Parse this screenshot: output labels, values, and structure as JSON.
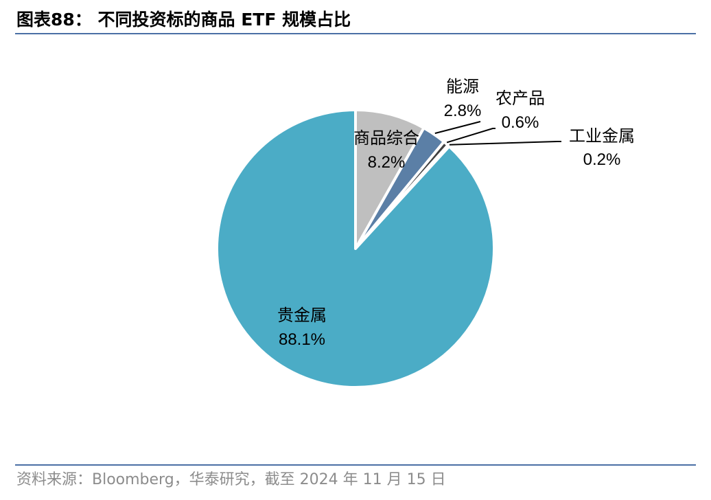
{
  "header": {
    "title": "图表88： 不同投资标的商品 ETF 规模占比"
  },
  "footer": {
    "source": "资料来源：Bloomberg，华泰研究，截至 2024 年 11 月 15 日"
  },
  "chart_data": {
    "type": "pie",
    "title": "",
    "start_angle_deg": 0,
    "direction": "clockwise",
    "slices": [
      {
        "name": "商品综合",
        "value": 8.2,
        "value_label": "8.2%",
        "color": "#bfbfbf"
      },
      {
        "name": "能源",
        "value": 2.8,
        "value_label": "2.8%",
        "color": "#5b7fa6"
      },
      {
        "name": "农产品",
        "value": 0.6,
        "value_label": "0.6%",
        "color": "#404040"
      },
      {
        "name": "工业金属",
        "value": 0.2,
        "value_label": "0.2%",
        "color": "#7f7f7f"
      },
      {
        "name": "贵金属",
        "value": 88.1,
        "value_label": "88.1%",
        "color": "#4bacc6"
      }
    ],
    "legend": "none",
    "data_labels": "category name and percentage"
  }
}
